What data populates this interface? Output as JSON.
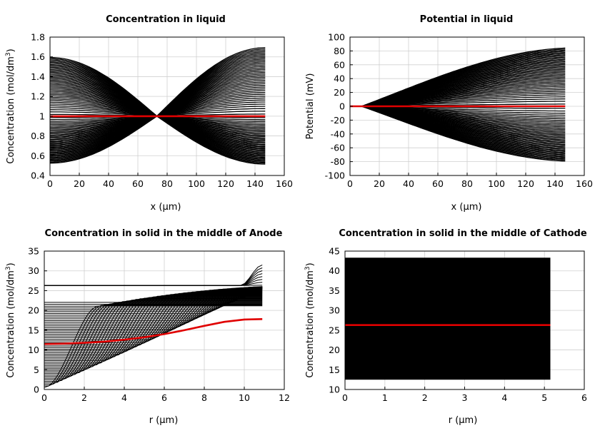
{
  "chart_data": [
    {
      "type": "line",
      "title": "Concentration in liquid",
      "xlabel": "x (µm)",
      "ylabel_main": "Concentration (mol/dm",
      "ylabel_sup": "3",
      "ylabel_end": ")",
      "xlim": [
        0,
        160
      ],
      "ylim": [
        0.4,
        1.8
      ],
      "xticks": [
        "0",
        "20",
        "40",
        "60",
        "80",
        "100",
        "120",
        "140",
        "160"
      ],
      "yticks": [
        "0.4",
        "0.6",
        "0.8",
        "1",
        "1.2",
        "1.4",
        "1.6",
        "1.8"
      ],
      "grid": true,
      "family": {
        "x_end": 147,
        "cross_x": 73,
        "left_max": 1.6,
        "left_min": 0.52,
        "right_max": 1.7,
        "right_min": 0.51,
        "line_count": 40
      },
      "highlight": {
        "color": "#e00000",
        "x": [
          0,
          147
        ],
        "y": [
          1.0,
          1.0
        ]
      }
    },
    {
      "type": "line",
      "title": "Potential in liquid",
      "xlabel": "x (µm)",
      "ylabel_main": "Potential (mV)",
      "ylabel_sup": "",
      "ylabel_end": "",
      "xlim": [
        0,
        160
      ],
      "ylim": [
        -100,
        100
      ],
      "xticks": [
        "0",
        "20",
        "40",
        "60",
        "80",
        "100",
        "120",
        "140",
        "160"
      ],
      "yticks": [
        "-100",
        "-80",
        "-60",
        "-40",
        "-20",
        "0",
        "20",
        "40",
        "60",
        "80",
        "100"
      ],
      "grid": true,
      "family": {
        "x_end": 147,
        "start_x": 8,
        "top_end": 85,
        "bottom_end": -80,
        "line_count": 40
      },
      "highlight": {
        "color": "#e00000",
        "x": [
          0,
          147
        ],
        "y": [
          0,
          0
        ]
      }
    },
    {
      "type": "line",
      "title": "Concentration in solid in the middle of Anode",
      "xlabel": "r (µm)",
      "ylabel_main": "Concentration (mol/dm",
      "ylabel_sup": "3",
      "ylabel_end": ")",
      "xlim": [
        0,
        12
      ],
      "ylim": [
        0,
        35
      ],
      "xticks": [
        "0",
        "2",
        "4",
        "6",
        "8",
        "10",
        "12"
      ],
      "yticks": [
        "0",
        "5",
        "10",
        "15",
        "20",
        "25",
        "30",
        "35"
      ],
      "grid": true,
      "family": {
        "x_end": 10.9,
        "max_y": 26.3,
        "surface_peak": 31.5,
        "line_count": 60
      },
      "highlight": {
        "color": "#e00000",
        "x": [
          0,
          1,
          2,
          3,
          4,
          5,
          6,
          7,
          8,
          9,
          10,
          10.9
        ],
        "y": [
          11.5,
          11.6,
          11.8,
          12.1,
          12.6,
          13.2,
          14.0,
          15.0,
          16.1,
          17.1,
          17.7,
          17.8
        ]
      }
    },
    {
      "type": "line",
      "title": "Concentration in solid in the middle of Cathode",
      "xlabel": "r (µm)",
      "ylabel_main": "Concentration (mol/dm",
      "ylabel_sup": "3",
      "ylabel_end": ")",
      "xlim": [
        0,
        6
      ],
      "ylim": [
        10,
        45
      ],
      "xticks": [
        "0",
        "1",
        "2",
        "3",
        "4",
        "5",
        "6"
      ],
      "yticks": [
        "10",
        "15",
        "20",
        "25",
        "30",
        "35",
        "40",
        "45"
      ],
      "grid": true,
      "family": {
        "x_end": 5.15,
        "min_y": 12.8,
        "max_y": 43.0,
        "line_count": 60
      },
      "highlight": {
        "color": "#e00000",
        "x": [
          0,
          5.15
        ],
        "y": [
          26.3,
          26.3
        ]
      }
    }
  ]
}
